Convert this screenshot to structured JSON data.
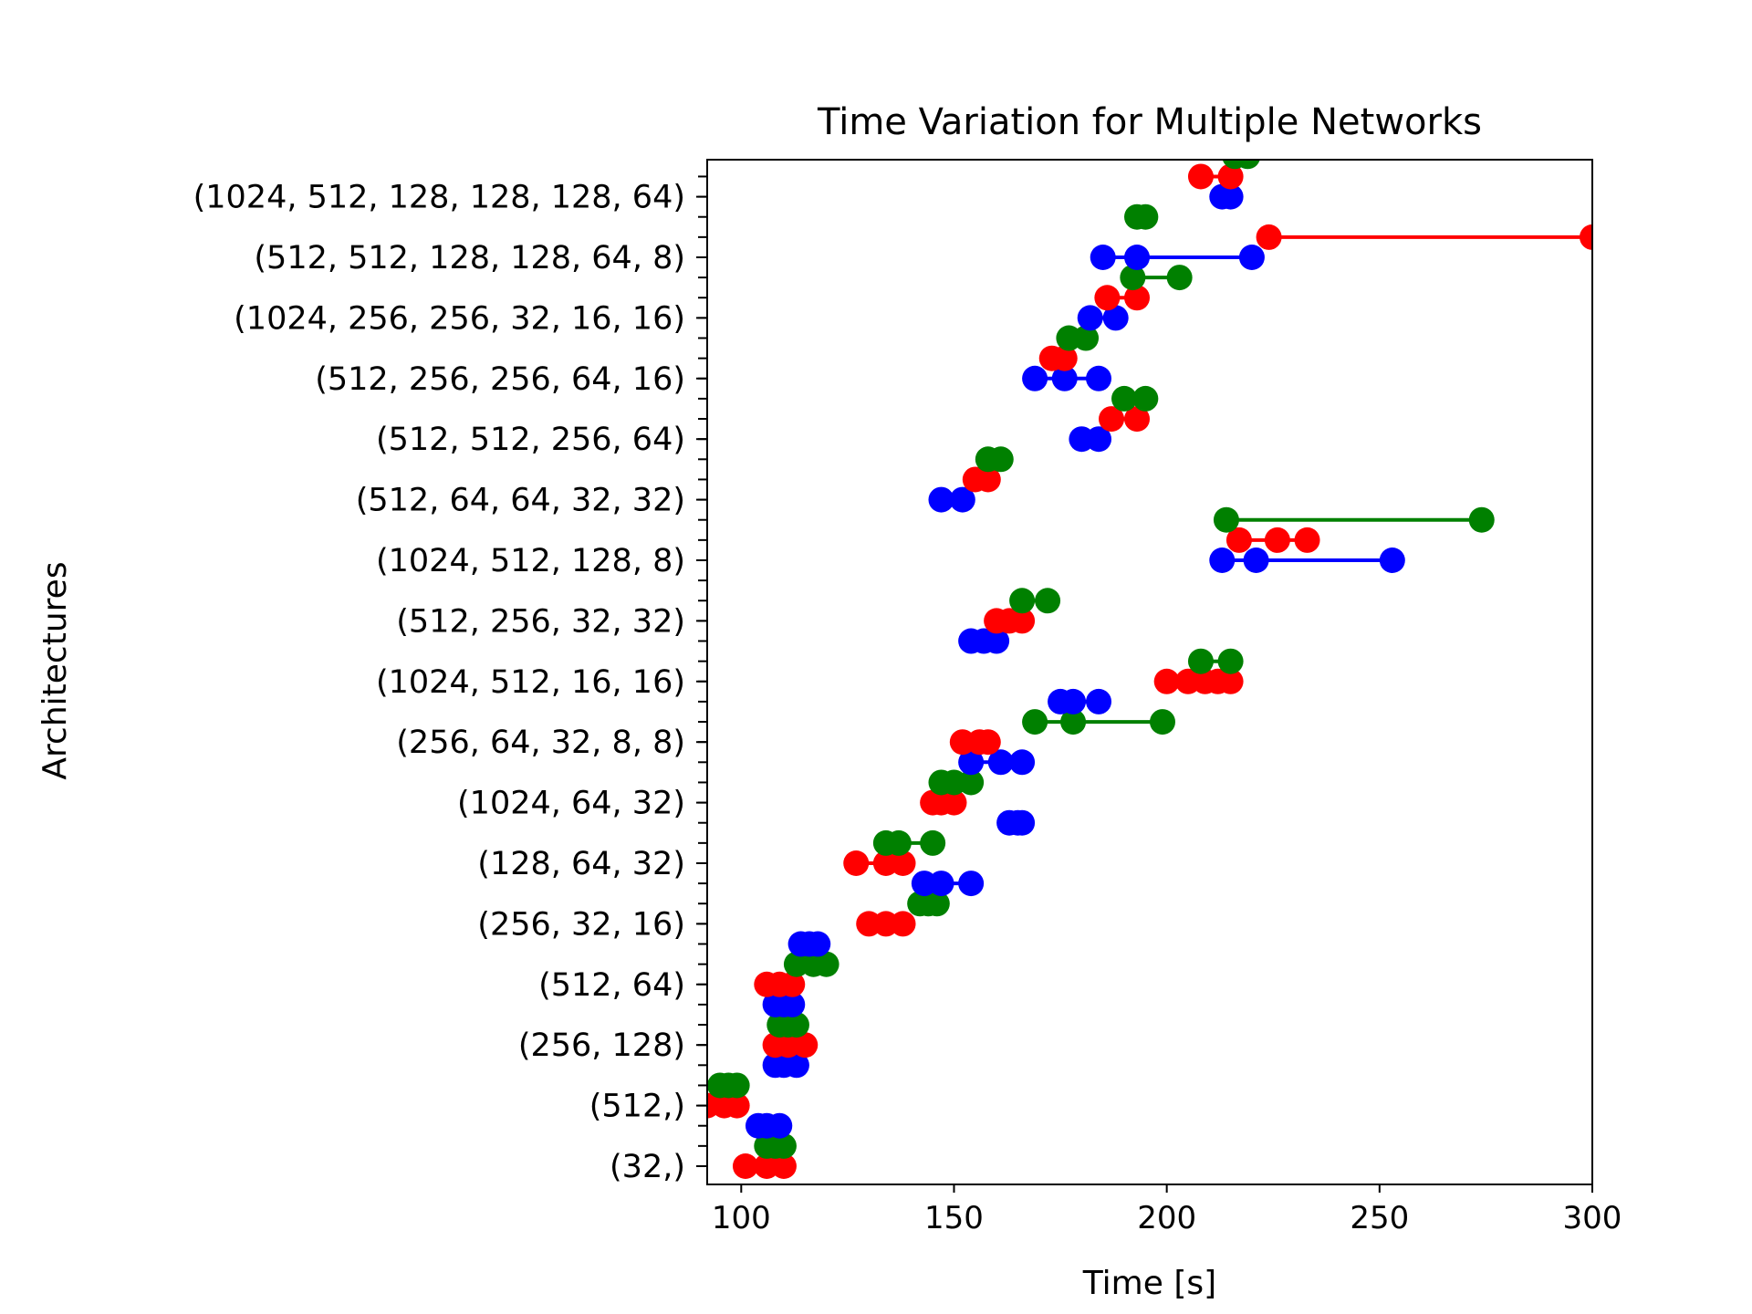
{
  "chart_data": {
    "type": "scatter",
    "title": "Time Variation for Multiple Networks",
    "xlabel": "Time [s]",
    "ylabel": "Architectures",
    "xlim": [
      92,
      300
    ],
    "xticks": [
      100,
      150,
      200,
      250,
      300
    ],
    "grid": false,
    "legend": "none",
    "colors": {
      "blue": "#0000ff",
      "red": "#ff0000",
      "green": "#008000"
    },
    "categories": [
      "(32,)",
      "(512,)",
      "(256, 128)",
      "(512, 64)",
      "(256, 32, 16)",
      "(128, 64, 32)",
      "(1024, 64, 32)",
      "(256, 64, 32, 8, 8)",
      "(1024, 512, 16, 16)",
      "(512, 256, 32, 32)",
      "(1024, 512, 128, 8)",
      "(512, 64, 64, 32, 32)",
      "(512, 512, 256, 64)",
      "(512, 256, 256, 64, 16)",
      "(1024, 256, 256, 32, 16, 16)",
      "(512, 512, 128, 128, 64, 8)",
      "(1024, 512, 128, 128, 128, 64)"
    ],
    "groups": [
      {
        "category": "(32,)",
        "position": 0,
        "offsets": [
          {
            "color": "red",
            "dy": 0,
            "x": [
              101,
              106,
              110
            ]
          },
          {
            "color": "green",
            "dy": 0.333,
            "x": [
              106,
              108,
              110
            ]
          },
          {
            "color": "blue",
            "dy": 0.667,
            "x": [
              104,
              106,
              109
            ]
          }
        ]
      },
      {
        "category": "(512,)",
        "position": 1,
        "offsets": [
          {
            "color": "red",
            "dy": 0,
            "x": [
              92,
              96,
              99
            ]
          },
          {
            "color": "green",
            "dy": 0.333,
            "x": [
              95,
              97,
              99
            ]
          }
        ]
      },
      {
        "category": "(256, 128)",
        "position": 2,
        "offsets": [
          {
            "color": "blue",
            "dy": -0.333,
            "x": [
              108,
              110,
              113
            ]
          },
          {
            "color": "red",
            "dy": 0,
            "x": [
              108,
              111,
              115
            ]
          },
          {
            "color": "green",
            "dy": 0.333,
            "x": [
              109,
              111,
              113
            ]
          },
          {
            "color": "blue",
            "dy": 0.667,
            "x": [
              108,
              110,
              112
            ]
          }
        ]
      },
      {
        "category": "(512, 64)",
        "position": 3,
        "offsets": [
          {
            "color": "red",
            "dy": 0,
            "x": [
              106,
              109,
              112
            ]
          },
          {
            "color": "green",
            "dy": 0.333,
            "x": [
              113,
              117,
              120
            ]
          },
          {
            "color": "blue",
            "dy": 0.667,
            "x": [
              114,
              116,
              118
            ]
          }
        ]
      },
      {
        "category": "(256, 32, 16)",
        "position": 4,
        "offsets": [
          {
            "color": "red",
            "dy": 0,
            "x": [
              130,
              134,
              138
            ]
          },
          {
            "color": "green",
            "dy": 0.333,
            "x": [
              142,
              144,
              146
            ]
          },
          {
            "color": "blue",
            "dy": 0.667,
            "x": [
              143,
              147,
              154
            ]
          }
        ]
      },
      {
        "category": "(128, 64, 32)",
        "position": 5,
        "offsets": [
          {
            "color": "red",
            "dy": 0,
            "x": [
              127,
              134,
              138
            ]
          },
          {
            "color": "green",
            "dy": 0.333,
            "x": [
              134,
              137,
              145
            ]
          },
          {
            "color": "blue",
            "dy": 0.667,
            "x": [
              163,
              165,
              166
            ]
          }
        ]
      },
      {
        "category": "(1024, 64, 32)",
        "position": 6,
        "offsets": [
          {
            "color": "red",
            "dy": 0,
            "x": [
              145,
              147,
              150
            ]
          },
          {
            "color": "green",
            "dy": 0.333,
            "x": [
              147,
              150,
              154
            ]
          },
          {
            "color": "blue",
            "dy": 0.667,
            "x": [
              154,
              161,
              166
            ]
          }
        ]
      },
      {
        "category": "(256, 64, 32, 8, 8)",
        "position": 7,
        "offsets": [
          {
            "color": "red",
            "dy": 0,
            "x": [
              152,
              156,
              158
            ]
          },
          {
            "color": "green",
            "dy": 0.333,
            "x": [
              169,
              178,
              199
            ]
          },
          {
            "color": "blue",
            "dy": 0.667,
            "x": [
              175,
              178,
              184
            ]
          }
        ]
      },
      {
        "category": "(1024, 512, 16, 16)",
        "position": 8,
        "offsets": [
          {
            "color": "red",
            "dy": 0,
            "x": [
              200,
              205,
              209,
              212,
              215
            ]
          },
          {
            "color": "green",
            "dy": 0.333,
            "x": [
              208,
              215
            ]
          }
        ]
      },
      {
        "category": "(512, 256, 32, 32)",
        "position": 9,
        "offsets": [
          {
            "color": "blue",
            "dy": -0.333,
            "x": [
              154,
              157,
              160
            ]
          },
          {
            "color": "red",
            "dy": 0,
            "x": [
              160,
              163,
              166
            ]
          },
          {
            "color": "green",
            "dy": 0.333,
            "x": [
              166,
              172
            ]
          }
        ]
      },
      {
        "category": "(1024, 512, 128, 8)",
        "position": 10,
        "offsets": [
          {
            "color": "blue",
            "dy": 0,
            "x": [
              213,
              221,
              253
            ]
          },
          {
            "color": "red",
            "dy": 0.333,
            "x": [
              217,
              226,
              233
            ]
          },
          {
            "color": "green",
            "dy": 0.667,
            "x": [
              214,
              274
            ]
          }
        ]
      },
      {
        "category": "(512, 64, 64, 32, 32)",
        "position": 11,
        "offsets": [
          {
            "color": "blue",
            "dy": 0,
            "x": [
              147,
              152
            ]
          },
          {
            "color": "red",
            "dy": 0.333,
            "x": [
              155,
              158
            ]
          },
          {
            "color": "green",
            "dy": 0.667,
            "x": [
              158,
              161
            ]
          }
        ]
      },
      {
        "category": "(512, 512, 256, 64)",
        "position": 12,
        "offsets": [
          {
            "color": "blue",
            "dy": 0,
            "x": [
              180,
              184
            ]
          },
          {
            "color": "red",
            "dy": 0.333,
            "x": [
              187,
              193
            ]
          },
          {
            "color": "green",
            "dy": 0.667,
            "x": [
              190,
              195
            ]
          }
        ]
      },
      {
        "category": "(512, 256, 256, 64, 16)",
        "position": 13,
        "offsets": [
          {
            "color": "blue",
            "dy": 0,
            "x": [
              169,
              176,
              184
            ]
          },
          {
            "color": "red",
            "dy": 0.333,
            "x": [
              173,
              176
            ]
          },
          {
            "color": "green",
            "dy": 0.667,
            "x": [
              177,
              181
            ]
          }
        ]
      },
      {
        "category": "(1024, 256, 256, 32, 16, 16)",
        "position": 14,
        "offsets": [
          {
            "color": "blue",
            "dy": 0,
            "x": [
              182,
              188
            ]
          },
          {
            "color": "red",
            "dy": 0.333,
            "x": [
              186,
              193
            ]
          },
          {
            "color": "green",
            "dy": 0.667,
            "x": [
              192,
              203
            ]
          }
        ]
      },
      {
        "category": "(512, 512, 128, 128, 64, 8)",
        "position": 15,
        "offsets": [
          {
            "color": "blue",
            "dy": 0,
            "x": [
              185,
              193,
              220
            ]
          },
          {
            "color": "red",
            "dy": 0.333,
            "x": [
              224,
              300
            ]
          },
          {
            "color": "green",
            "dy": 0.667,
            "x": [
              193,
              195
            ]
          }
        ]
      },
      {
        "category": "(1024, 512, 128, 128, 128, 64)",
        "position": 16,
        "offsets": [
          {
            "color": "blue",
            "dy": 0,
            "x": [
              213,
              215
            ]
          },
          {
            "color": "red",
            "dy": 0.333,
            "x": [
              208,
              215
            ]
          },
          {
            "color": "green",
            "dy": 0.667,
            "x": [
              216,
              219
            ]
          }
        ]
      }
    ]
  }
}
